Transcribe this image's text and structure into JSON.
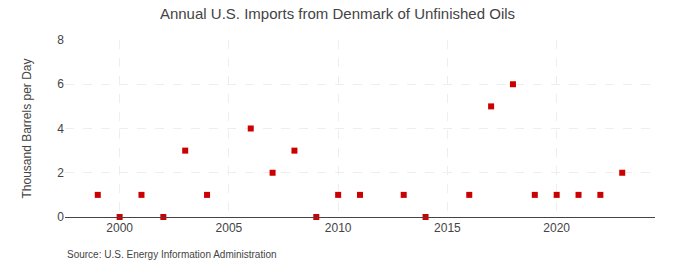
{
  "chart_data": {
    "type": "scatter",
    "title": "Annual U.S. Imports from Denmark of Unfinished Oils",
    "ylabel": "Thousand Barrels per Day",
    "annotations": [
      "Source: U.S. Energy Information Administration"
    ],
    "x": [
      1999,
      2000,
      2001,
      2002,
      2003,
      2004,
      2006,
      2007,
      2008,
      2009,
      2010,
      2011,
      2013,
      2014,
      2016,
      2017,
      2018,
      2019,
      2020,
      2021,
      2022,
      2023
    ],
    "values": [
      1,
      0,
      1,
      0,
      3,
      1,
      4,
      2,
      3,
      0,
      1,
      1,
      1,
      0,
      1,
      5,
      6,
      1,
      1,
      1,
      1,
      2
    ],
    "color": "#cc0000",
    "marker": "square",
    "xlim": [
      1997.5,
      2024.5
    ],
    "xticks": [
      2000,
      2005,
      2010,
      2015,
      2020
    ],
    "ylim": [
      0,
      8
    ],
    "yticks": [
      0,
      2,
      4,
      6,
      8
    ],
    "grid": true
  }
}
